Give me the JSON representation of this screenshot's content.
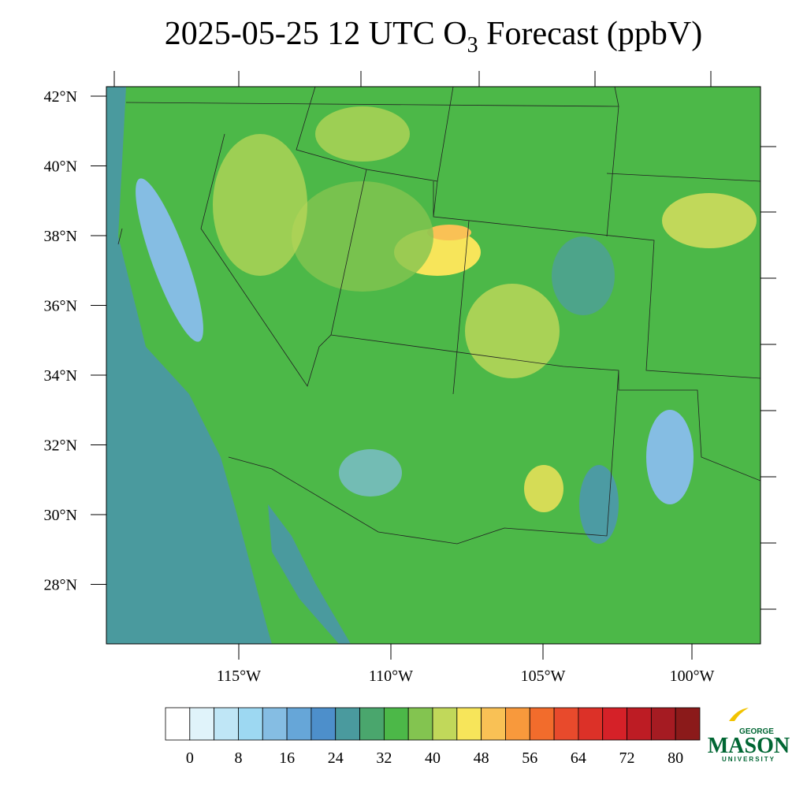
{
  "title": {
    "prefix": "2025-05-25 12 UTC O",
    "subscript": "3",
    "suffix": " Forecast (ppbV)"
  },
  "lat_labels": [
    "42°N",
    "40°N",
    "38°N",
    "36°N",
    "34°N",
    "32°N",
    "30°N",
    "28°N"
  ],
  "lon_labels": [
    "115°W",
    "110°W",
    "105°W",
    "100°W"
  ],
  "colorbar": {
    "ticks": [
      0,
      8,
      16,
      24,
      32,
      40,
      48,
      56,
      64,
      72,
      80
    ],
    "colors": [
      "#ffffff",
      "#e0f3fa",
      "#bfe6f6",
      "#9dd8f2",
      "#85bde3",
      "#66a6d8",
      "#4d8fcb",
      "#4a9a9e",
      "#4aa66d",
      "#4cb848",
      "#83c450",
      "#c1d85a",
      "#f7e55a",
      "#f9c155",
      "#f8993c",
      "#f26c2c",
      "#e84a2c",
      "#dc3128",
      "#d52128",
      "#bd1c24",
      "#a51b22",
      "#8b1a1a"
    ]
  },
  "logo": {
    "top": "GEORGE",
    "main": "MASON",
    "bottom": "UNIVERSITY"
  }
}
